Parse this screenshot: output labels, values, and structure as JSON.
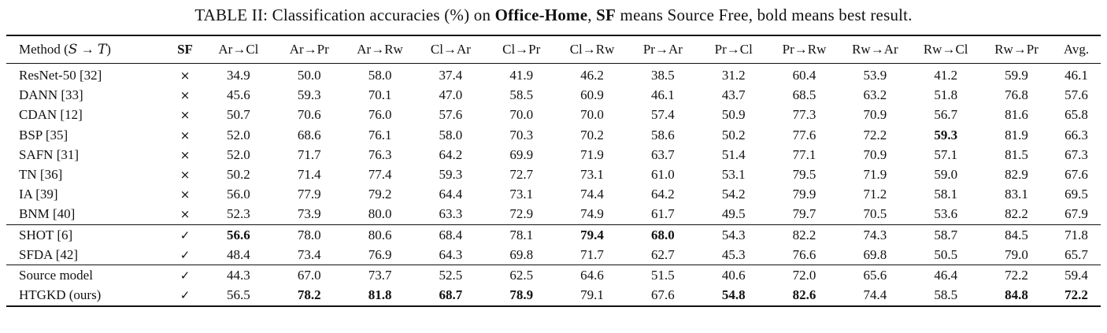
{
  "title": {
    "segments": [
      {
        "text": "TABLE II: Classification accuracies (%) on ",
        "bold": false
      },
      {
        "text": "Office-Home",
        "bold": true
      },
      {
        "text": ", ",
        "bold": false
      },
      {
        "text": "SF",
        "bold": true
      },
      {
        "text": " means Source Free, bold means best result.",
        "bold": false
      }
    ]
  },
  "table": {
    "method_header": {
      "prefix": "Method (",
      "source_symbol": "S",
      "arrow": "→",
      "target_symbol": "T",
      "suffix": ")"
    },
    "sf_header": "SF",
    "columns": [
      "Ar→Cl",
      "Ar→Pr",
      "Ar→Rw",
      "Cl→Ar",
      "Cl→Pr",
      "Cl→Rw",
      "Pr→Ar",
      "Pr→Cl",
      "Pr→Rw",
      "Rw→Ar",
      "Rw→Cl",
      "Rw→Pr",
      "Avg."
    ],
    "symbols": {
      "not_source_free": "×",
      "source_free": "✓"
    },
    "groups": [
      {
        "rows": [
          {
            "method": "ResNet-50 [32]",
            "sf": "×",
            "values": [
              "34.9",
              "50.0",
              "58.0",
              "37.4",
              "41.9",
              "46.2",
              "38.5",
              "31.2",
              "60.4",
              "53.9",
              "41.2",
              "59.9",
              "46.1"
            ],
            "bold_cols": []
          },
          {
            "method": "DANN [33]",
            "sf": "×",
            "values": [
              "45.6",
              "59.3",
              "70.1",
              "47.0",
              "58.5",
              "60.9",
              "46.1",
              "43.7",
              "68.5",
              "63.2",
              "51.8",
              "76.8",
              "57.6"
            ],
            "bold_cols": []
          },
          {
            "method": "CDAN [12]",
            "sf": "×",
            "values": [
              "50.7",
              "70.6",
              "76.0",
              "57.6",
              "70.0",
              "70.0",
              "57.4",
              "50.9",
              "77.3",
              "70.9",
              "56.7",
              "81.6",
              "65.8"
            ],
            "bold_cols": []
          },
          {
            "method": "BSP [35]",
            "sf": "×",
            "values": [
              "52.0",
              "68.6",
              "76.1",
              "58.0",
              "70.3",
              "70.2",
              "58.6",
              "50.2",
              "77.6",
              "72.2",
              "59.3",
              "81.9",
              "66.3"
            ],
            "bold_cols": [
              10
            ]
          },
          {
            "method": "SAFN [31]",
            "sf": "×",
            "values": [
              "52.0",
              "71.7",
              "76.3",
              "64.2",
              "69.9",
              "71.9",
              "63.7",
              "51.4",
              "77.1",
              "70.9",
              "57.1",
              "81.5",
              "67.3"
            ],
            "bold_cols": []
          },
          {
            "method": "TN [36]",
            "sf": "×",
            "values": [
              "50.2",
              "71.4",
              "77.4",
              "59.3",
              "72.7",
              "73.1",
              "61.0",
              "53.1",
              "79.5",
              "71.9",
              "59.0",
              "82.9",
              "67.6"
            ],
            "bold_cols": []
          },
          {
            "method": "IA [39]",
            "sf": "×",
            "values": [
              "56.0",
              "77.9",
              "79.2",
              "64.4",
              "73.1",
              "74.4",
              "64.2",
              "54.2",
              "79.9",
              "71.2",
              "58.1",
              "83.1",
              "69.5"
            ],
            "bold_cols": []
          },
          {
            "method": "BNM [40]",
            "sf": "×",
            "values": [
              "52.3",
              "73.9",
              "80.0",
              "63.3",
              "72.9",
              "74.9",
              "61.7",
              "49.5",
              "79.7",
              "70.5",
              "53.6",
              "82.2",
              "67.9"
            ],
            "bold_cols": []
          }
        ]
      },
      {
        "rows": [
          {
            "method": "SHOT [6]",
            "sf": "✓",
            "values": [
              "56.6",
              "78.0",
              "80.6",
              "68.4",
              "78.1",
              "79.4",
              "68.0",
              "54.3",
              "82.2",
              "74.3",
              "58.7",
              "84.5",
              "71.8"
            ],
            "bold_cols": [
              0,
              5,
              6
            ]
          },
          {
            "method": "SFDA [42]",
            "sf": "✓",
            "values": [
              "48.4",
              "73.4",
              "76.9",
              "64.3",
              "69.8",
              "71.7",
              "62.7",
              "45.3",
              "76.6",
              "69.8",
              "50.5",
              "79.0",
              "65.7"
            ],
            "bold_cols": []
          }
        ]
      },
      {
        "rows": [
          {
            "method": "Source model",
            "sf": "✓",
            "values": [
              "44.3",
              "67.0",
              "73.7",
              "52.5",
              "62.5",
              "64.6",
              "51.5",
              "40.6",
              "72.0",
              "65.6",
              "46.4",
              "72.2",
              "59.4"
            ],
            "bold_cols": []
          },
          {
            "method": "HTGKD (ours)",
            "sf": "✓",
            "values": [
              "56.5",
              "78.2",
              "81.8",
              "68.7",
              "78.9",
              "79.1",
              "67.6",
              "54.8",
              "82.6",
              "74.4",
              "58.5",
              "84.8",
              "72.2"
            ],
            "bold_cols": [
              1,
              2,
              3,
              4,
              7,
              8,
              11,
              12
            ]
          }
        ]
      }
    ]
  }
}
